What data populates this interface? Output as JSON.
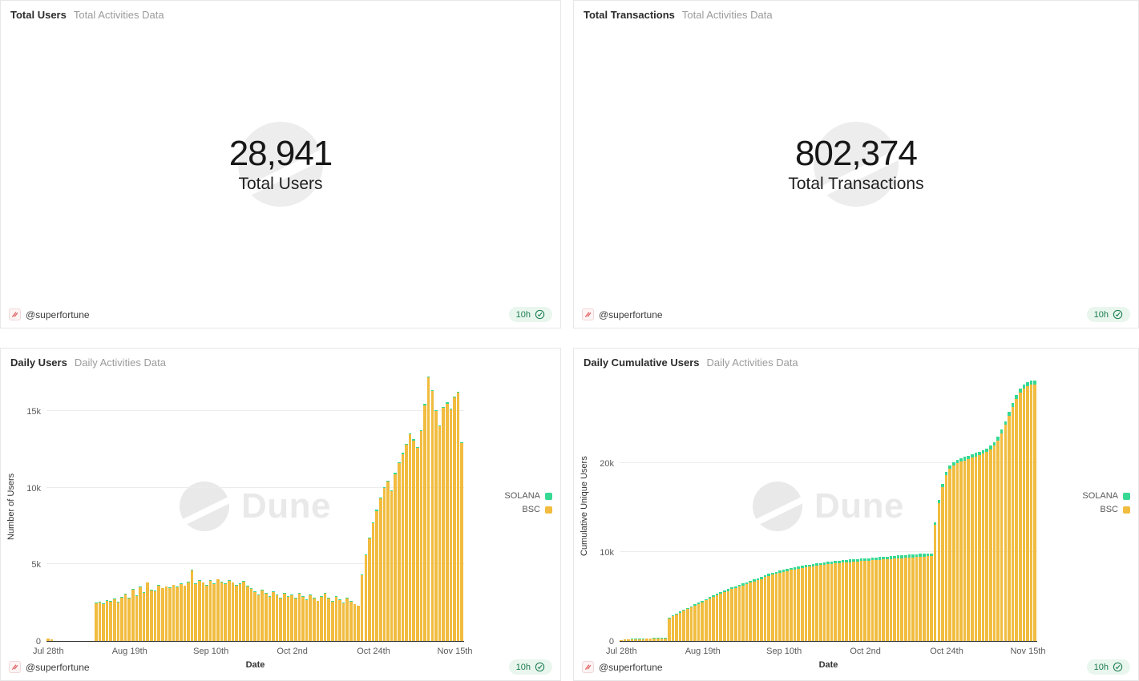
{
  "author": "@superfortune",
  "badge": {
    "label": "10h"
  },
  "watermark_text": "Dune",
  "colors": {
    "solana": "#36D993",
    "bsc": "#F1BC3F",
    "badge_green": "#1c7d4f",
    "logo_red": "#e05c5c"
  },
  "panels": {
    "total_users": {
      "title": "Total Users",
      "subtitle": "Total Activities Data",
      "value": "28,941",
      "label": "Total Users"
    },
    "total_transactions": {
      "title": "Total Transactions",
      "subtitle": "Total Activities Data",
      "value": "802,374",
      "label": "Total Transactions"
    },
    "daily_users": {
      "title": "Daily Users",
      "subtitle": "Daily Activities Data",
      "xlabel": "Date",
      "ylabel": "Number of Users"
    },
    "daily_cumulative_users": {
      "title": "Daily Cumulative Users",
      "subtitle": "Daily Activities Data",
      "xlabel": "Date",
      "ylabel": "Cumulative Unique Users"
    }
  },
  "chart_data": [
    {
      "type": "bar",
      "stacked": true,
      "title": "Daily Users",
      "xlabel": "Date",
      "ylabel": "Number of Users",
      "grid": true,
      "legend_position": "right",
      "ylim": [
        0,
        17600
      ],
      "y_ticks": [
        {
          "value": 0,
          "label": "0"
        },
        {
          "value": 5000,
          "label": "5k"
        },
        {
          "value": 10000,
          "label": "10k"
        },
        {
          "value": 15000,
          "label": "15k"
        }
      ],
      "x_tick_indices": [
        0,
        22,
        44,
        66,
        88,
        110
      ],
      "x_tick_labels": [
        "Jul 28th",
        "Aug 19th",
        "Sep 10th",
        "Oct 2nd",
        "Oct 24th",
        "Nov 15th"
      ],
      "series": [
        {
          "name": "SOLANA",
          "color": "#36D993",
          "values": [
            12,
            6,
            0,
            0,
            0,
            0,
            0,
            0,
            0,
            0,
            0,
            0,
            0,
            34,
            38,
            32,
            40,
            36,
            42,
            35,
            39,
            37,
            41,
            33,
            38,
            36,
            40,
            34,
            42,
            38,
            35,
            41,
            37,
            39,
            36,
            43,
            34,
            40,
            38,
            36,
            42,
            35,
            39,
            33,
            41,
            37,
            35,
            40,
            36,
            38,
            42,
            34,
            39,
            37,
            41,
            35,
            38,
            36,
            40,
            34,
            42,
            38,
            36,
            41,
            33,
            39,
            37,
            40,
            35,
            38,
            36,
            42,
            34,
            40,
            38,
            35,
            41,
            37,
            39,
            36,
            40,
            34,
            38,
            36,
            42,
            58,
            62,
            66,
            70,
            64,
            68,
            72,
            66,
            60,
            70,
            74,
            68,
            64,
            72,
            66,
            62,
            70,
            74,
            68,
            64,
            60,
            66,
            72,
            68,
            64,
            70,
            74,
            58
          ]
        },
        {
          "name": "BSC",
          "color": "#F1BC3F",
          "values": [
            150,
            80,
            0,
            0,
            0,
            0,
            0,
            0,
            0,
            0,
            0,
            0,
            0,
            2450,
            2520,
            2400,
            2620,
            2560,
            2710,
            2530,
            2820,
            3020,
            2760,
            3340,
            2930,
            3520,
            3140,
            3790,
            3310,
            3240,
            3620,
            3430,
            3540,
            3460,
            3640,
            3510,
            3720,
            3590,
            3810,
            4620,
            3730,
            3920,
            3800,
            3630,
            3930,
            3710,
            4010,
            3820,
            3700,
            3910,
            3790,
            3610,
            3720,
            3860,
            3570,
            3400,
            3180,
            2980,
            3290,
            3090,
            2880,
            3190,
            2990,
            2790,
            3080,
            2890,
            2990,
            2780,
            3090,
            2880,
            2680,
            2980,
            2790,
            2590,
            2890,
            3080,
            2780,
            2580,
            2880,
            2680,
            2480,
            2780,
            2580,
            2380,
            2280,
            4280,
            5580,
            6680,
            7680,
            8480,
            9280,
            9980,
            10380,
            9780,
            10880,
            11580,
            12180,
            12780,
            13480,
            13080,
            12580,
            13680,
            15380,
            17180,
            16280,
            14980,
            13980,
            15180,
            15480,
            15080,
            15880,
            16180,
            12880
          ]
        }
      ]
    },
    {
      "type": "bar",
      "stacked": true,
      "title": "Daily Cumulative Users",
      "xlabel": "Date",
      "ylabel": "Cumulative Unique Users",
      "grid": true,
      "legend_position": "right",
      "ylim": [
        0,
        30300
      ],
      "y_ticks": [
        {
          "value": 0,
          "label": "0"
        },
        {
          "value": 10000,
          "label": "10k"
        },
        {
          "value": 20000,
          "label": "20k"
        }
      ],
      "x_tick_indices": [
        0,
        22,
        44,
        66,
        88,
        110
      ],
      "x_tick_labels": [
        "Jul 28th",
        "Aug 19th",
        "Sep 10th",
        "Oct 2nd",
        "Oct 24th",
        "Nov 15th"
      ],
      "series": [
        {
          "name": "SOLANA",
          "color": "#36D993",
          "values": [
            30,
            40,
            46,
            50,
            53,
            56,
            58,
            60,
            62,
            64,
            66,
            68,
            70,
            120,
            124,
            128,
            132,
            136,
            140,
            144,
            148,
            152,
            156,
            160,
            164,
            168,
            172,
            176,
            180,
            184,
            188,
            192,
            196,
            200,
            204,
            207,
            210,
            213,
            216,
            219,
            222,
            225,
            228,
            231,
            234,
            237,
            240,
            243,
            246,
            249,
            252,
            255,
            258,
            261,
            264,
            267,
            270,
            272,
            274,
            276,
            278,
            280,
            282,
            284,
            286,
            288,
            290,
            292,
            294,
            296,
            298,
            300,
            302,
            304,
            306,
            308,
            310,
            312,
            314,
            316,
            318,
            320,
            322,
            324,
            326,
            334,
            342,
            350,
            356,
            362,
            367,
            371,
            375,
            379,
            383,
            387,
            391,
            395,
            399,
            403,
            407,
            411,
            416,
            421,
            426,
            432,
            438,
            444,
            450,
            456,
            462,
            466,
            466
          ]
        },
        {
          "name": "BSC",
          "color": "#F1BC3F",
          "values": [
            90,
            140,
            170,
            190,
            205,
            215,
            225,
            235,
            245,
            255,
            265,
            275,
            285,
            2500,
            2760,
            2960,
            3170,
            3380,
            3580,
            3760,
            3960,
            4170,
            4350,
            4560,
            4740,
            4950,
            5110,
            5330,
            5480,
            5620,
            5810,
            5960,
            6110,
            6250,
            6400,
            6540,
            6690,
            6820,
            6960,
            7170,
            7310,
            7430,
            7540,
            7640,
            7750,
            7850,
            7960,
            8040,
            8110,
            8190,
            8260,
            8320,
            8380,
            8440,
            8500,
            8550,
            8600,
            8640,
            8690,
            8730,
            8770,
            8810,
            8850,
            8880,
            8920,
            8950,
            8980,
            9010,
            9050,
            9080,
            9100,
            9140,
            9170,
            9190,
            9230,
            9270,
            9300,
            9320,
            9360,
            9390,
            9410,
            9450,
            9480,
            9500,
            9520,
            13000,
            15500,
            17300,
            18600,
            19300,
            19700,
            19950,
            20120,
            20270,
            20420,
            20570,
            20720,
            20870,
            21020,
            21220,
            21500,
            21900,
            22500,
            23300,
            24250,
            25250,
            26250,
            27150,
            27850,
            28300,
            28600,
            28750,
            28750
          ]
        }
      ]
    }
  ]
}
